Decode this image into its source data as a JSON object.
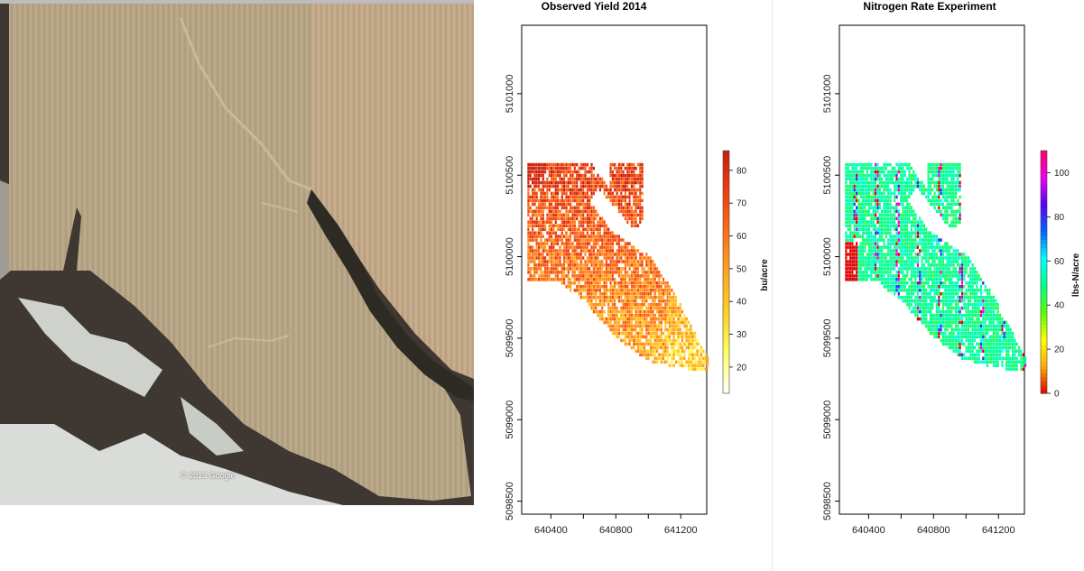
{
  "aerial_image": {
    "copyright": "© 2013 Google"
  },
  "chart_data": [
    {
      "type": "heatmap",
      "title": "Observed Yield  2014",
      "xlabel": "",
      "ylabel": "",
      "xlim": [
        640220,
        641360
      ],
      "ylim": [
        5098420,
        5101420
      ],
      "x_ticks": [
        640400,
        640600,
        640800,
        641000,
        641200
      ],
      "x_tick_labels": [
        "640400",
        "640800",
        "641200"
      ],
      "y_ticks": [
        5098500,
        5099000,
        5099500,
        5100000,
        5100500,
        5101000
      ],
      "y_tick_labels": [
        "5098500",
        "5099000",
        "5099500",
        "5100000",
        "5100500",
        "5101000"
      ],
      "colorbar": {
        "label": "bu/acre",
        "range": [
          12,
          86
        ],
        "ticks": [
          20,
          30,
          40,
          50,
          60,
          70,
          80
        ],
        "tick_labels": [
          "20",
          "30",
          "40",
          "50",
          "60",
          "70",
          "80"
        ],
        "colors": [
          "#ffffff",
          "#ffff66",
          "#ffd21e",
          "#ffa51e",
          "#ff6e14",
          "#f03c0f",
          "#c81e0a"
        ]
      },
      "field_outline_xy": [
        [
          640250,
          5100560
        ],
        [
          640650,
          5100560
        ],
        [
          640760,
          5100390
        ],
        [
          640760,
          5100560
        ],
        [
          640960,
          5100560
        ],
        [
          640960,
          5100190
        ],
        [
          640900,
          5100160
        ],
        [
          640680,
          5100420
        ],
        [
          640640,
          5100330
        ],
        [
          640760,
          5100150
        ],
        [
          641020,
          5099980
        ],
        [
          641180,
          5099720
        ],
        [
          641370,
          5099350
        ],
        [
          641360,
          5099300
        ],
        [
          641240,
          5099300
        ],
        [
          640980,
          5099350
        ],
        [
          640760,
          5099530
        ],
        [
          640600,
          5099720
        ],
        [
          640450,
          5099830
        ],
        [
          640250,
          5099830
        ]
      ],
      "legend_position": "right"
    },
    {
      "type": "heatmap",
      "title": "Nitrogen Rate Experiment",
      "xlabel": "",
      "ylabel": "",
      "xlim": [
        640220,
        641360
      ],
      "ylim": [
        5098420,
        5101420
      ],
      "x_ticks": [
        640400,
        640600,
        640800,
        641000,
        641200
      ],
      "x_tick_labels": [
        "640400",
        "640800",
        "641200"
      ],
      "y_ticks": [
        5098500,
        5099000,
        5099500,
        5100000,
        5100500,
        5101000
      ],
      "y_tick_labels": [
        "5098500",
        "5099000",
        "5099500",
        "5100000",
        "5100500",
        "5101000"
      ],
      "colorbar": {
        "label": "lbs-N/acre",
        "range": [
          0,
          110
        ],
        "ticks": [
          0,
          20,
          40,
          60,
          80,
          100
        ],
        "tick_labels": [
          "0",
          "20",
          "40",
          "60",
          "80",
          "100"
        ],
        "colors": [
          "#e00000",
          "#ffaa00",
          "#ffff00",
          "#55ff00",
          "#00ff88",
          "#00ffff",
          "#0066ff",
          "#5500ff",
          "#ee00ee",
          "#ff0066"
        ]
      },
      "field_outline_xy": [
        [
          640250,
          5100560
        ],
        [
          640650,
          5100560
        ],
        [
          640760,
          5100390
        ],
        [
          640760,
          5100560
        ],
        [
          640960,
          5100560
        ],
        [
          640960,
          5100190
        ],
        [
          640900,
          5100160
        ],
        [
          640680,
          5100420
        ],
        [
          640640,
          5100330
        ],
        [
          640760,
          5100150
        ],
        [
          641020,
          5099980
        ],
        [
          641180,
          5099720
        ],
        [
          641370,
          5099350
        ],
        [
          641360,
          5099300
        ],
        [
          641240,
          5099300
        ],
        [
          640980,
          5099350
        ],
        [
          640760,
          5099530
        ],
        [
          640600,
          5099720
        ],
        [
          640450,
          5099830
        ],
        [
          640250,
          5099830
        ]
      ],
      "legend_position": "right"
    }
  ]
}
